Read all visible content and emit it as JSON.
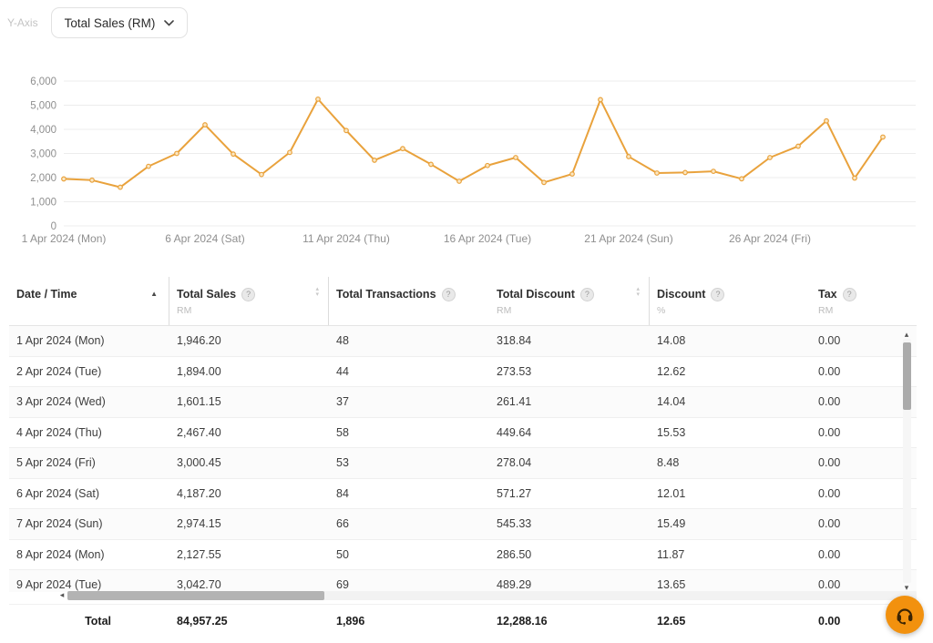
{
  "controls": {
    "y_axis_label": "Y-Axis",
    "y_axis_value": "Total Sales  (RM)"
  },
  "icons": {
    "info": "?",
    "sort_asc": "▲",
    "sort_up": "▴",
    "sort_down": "▾",
    "scroll_left": "◂",
    "scroll_up": "▴",
    "scroll_down": "▾"
  },
  "chart_data": {
    "type": "line",
    "series_name": "Total Sales (RM)",
    "x_days": [
      1,
      2,
      3,
      4,
      5,
      6,
      7,
      8,
      9,
      10,
      11,
      12,
      13,
      14,
      15,
      16,
      17,
      18,
      19,
      20,
      21,
      22,
      23,
      24,
      25,
      26,
      27,
      28,
      29,
      30
    ],
    "values": [
      1946.2,
      1894.0,
      1601.15,
      2467.4,
      3000.45,
      4187.2,
      2974.15,
      2127.55,
      3042.7,
      5250,
      3950,
      2720,
      3200,
      2550,
      1850,
      2500,
      2830,
      1800,
      2150,
      5230,
      2870,
      2190,
      2210,
      2260,
      1950,
      2830,
      3300,
      4350,
      1980,
      3680
    ],
    "x_tick_days": [
      1,
      6,
      11,
      16,
      21,
      26
    ],
    "x_tick_labels": [
      "1 Apr 2024 (Mon)",
      "6 Apr 2024 (Sat)",
      "11 Apr 2024 (Thu)",
      "16 Apr 2024 (Tue)",
      "21 Apr 2024 (Sun)",
      "26 Apr 2024 (Fri)"
    ],
    "y_ticks": [
      0,
      1000,
      2000,
      3000,
      4000,
      5000,
      6000
    ],
    "y_tick_labels": [
      "0",
      "1,000",
      "2,000",
      "3,000",
      "4,000",
      "5,000",
      "6,000"
    ],
    "ylim": [
      0,
      6000
    ],
    "grid": true,
    "legend_position": "none",
    "line_color": "#e9a23c",
    "marker_fill": "#fbe7c3"
  },
  "table": {
    "columns": [
      {
        "label": "Date / Time",
        "unit": "",
        "info": false,
        "sort": "asc",
        "divider": true
      },
      {
        "label": "Total Sales",
        "unit": "RM",
        "info": true,
        "sort": "both",
        "divider": true
      },
      {
        "label": "Total Transactions",
        "unit": "",
        "info": true,
        "sort": null,
        "divider": false
      },
      {
        "label": "Total Discount",
        "unit": "RM",
        "info": true,
        "sort": "both",
        "divider": true
      },
      {
        "label": "Discount",
        "unit": "%",
        "info": true,
        "sort": null,
        "divider": false
      },
      {
        "label": "Tax",
        "unit": "RM",
        "info": true,
        "sort": null,
        "divider": false
      }
    ],
    "rows": [
      [
        "1 Apr 2024 (Mon)",
        "1,946.20",
        "48",
        "318.84",
        "14.08",
        "0.00"
      ],
      [
        "2 Apr 2024 (Tue)",
        "1,894.00",
        "44",
        "273.53",
        "12.62",
        "0.00"
      ],
      [
        "3 Apr 2024 (Wed)",
        "1,601.15",
        "37",
        "261.41",
        "14.04",
        "0.00"
      ],
      [
        "4 Apr 2024 (Thu)",
        "2,467.40",
        "58",
        "449.64",
        "15.53",
        "0.00"
      ],
      [
        "5 Apr 2024 (Fri)",
        "3,000.45",
        "53",
        "278.04",
        "8.48",
        "0.00"
      ],
      [
        "6 Apr 2024 (Sat)",
        "4,187.20",
        "84",
        "571.27",
        "12.01",
        "0.00"
      ],
      [
        "7 Apr 2024 (Sun)",
        "2,974.15",
        "66",
        "545.33",
        "15.49",
        "0.00"
      ],
      [
        "8 Apr 2024 (Mon)",
        "2,127.55",
        "50",
        "286.50",
        "11.87",
        "0.00"
      ],
      [
        "9 Apr 2024 (Tue)",
        "3,042.70",
        "69",
        "489.29",
        "13.65",
        "0.00"
      ]
    ],
    "total_label": "Total",
    "total": [
      "84,957.25",
      "1,896",
      "12,288.16",
      "12.65",
      "0.00"
    ]
  }
}
